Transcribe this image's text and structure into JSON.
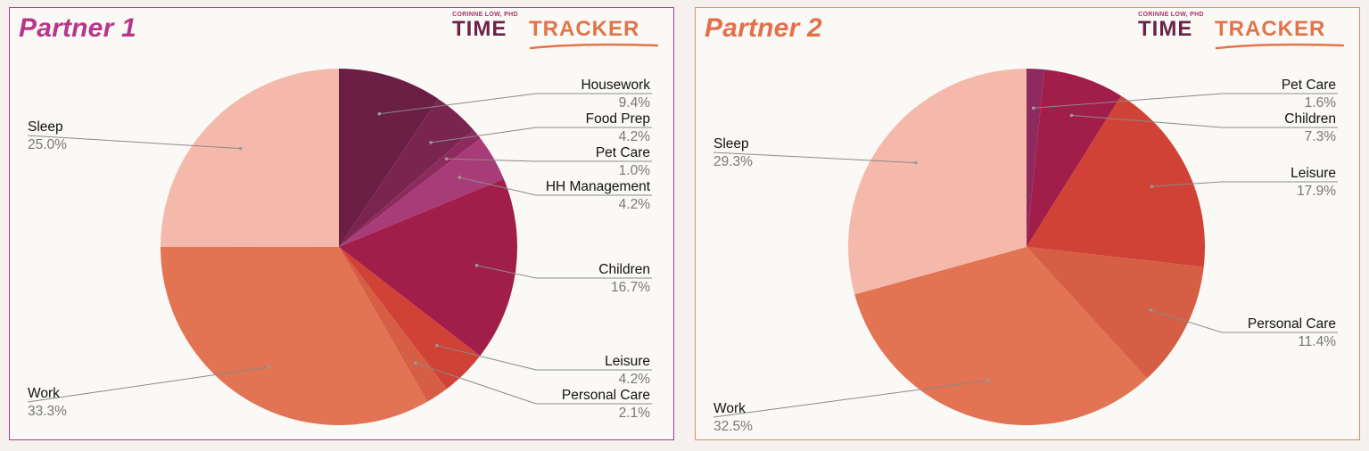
{
  "logo": {
    "author": "CORINNE LOW, PHD",
    "word1": "TIME",
    "word2": "TRACKER"
  },
  "chart_data": [
    {
      "type": "pie",
      "title": "Partner 1",
      "slices": [
        {
          "label": "Housework",
          "value": 9.4,
          "pct": "9.4%",
          "color": "#6b1f45"
        },
        {
          "label": "Food Prep",
          "value": 4.2,
          "pct": "4.2%",
          "color": "#7a2550"
        },
        {
          "label": "Pet Care",
          "value": 1.0,
          "pct": "1.0%",
          "color": "#8e2b5e"
        },
        {
          "label": "HH Management",
          "value": 4.2,
          "pct": "4.2%",
          "color": "#a83c78"
        },
        {
          "label": "Children",
          "value": 16.7,
          "pct": "16.7%",
          "color": "#a11e4b"
        },
        {
          "label": "Leisure",
          "value": 4.2,
          "pct": "4.2%",
          "color": "#d14236"
        },
        {
          "label": "Personal Care",
          "value": 2.1,
          "pct": "2.1%",
          "color": "#d55e45"
        },
        {
          "label": "Work",
          "value": 33.3,
          "pct": "33.3%",
          "color": "#e27353"
        },
        {
          "label": "Sleep",
          "value": 25.0,
          "pct": "25.0%",
          "color": "#f4b9aa"
        }
      ]
    },
    {
      "type": "pie",
      "title": "Partner 2",
      "slices": [
        {
          "label": "Pet Care",
          "value": 1.6,
          "pct": "1.6%",
          "color": "#8e2b5e"
        },
        {
          "label": "Children",
          "value": 7.3,
          "pct": "7.3%",
          "color": "#a11e4b"
        },
        {
          "label": "Leisure",
          "value": 17.9,
          "pct": "17.9%",
          "color": "#d14236"
        },
        {
          "label": "Personal Care",
          "value": 11.4,
          "pct": "11.4%",
          "color": "#d55e45"
        },
        {
          "label": "Work",
          "value": 32.5,
          "pct": "32.5%",
          "color": "#e27353"
        },
        {
          "label": "Sleep",
          "value": 29.3,
          "pct": "29.3%",
          "color": "#f4b9aa"
        }
      ]
    }
  ]
}
